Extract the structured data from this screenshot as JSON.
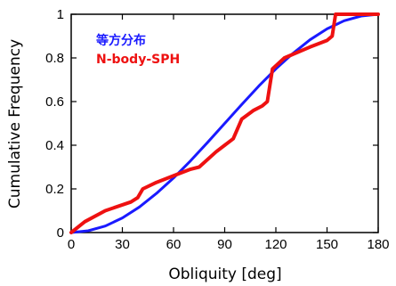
{
  "chart_data": {
    "type": "line",
    "title": "",
    "xlabel": "Obliquity [deg]",
    "ylabel": "Cumulative Frequency",
    "xlim": [
      0,
      180
    ],
    "ylim": [
      0,
      1
    ],
    "x_ticks": [
      "0",
      "30",
      "60",
      "90",
      "120",
      "150",
      "180"
    ],
    "y_ticks": [
      "0",
      "0.2",
      "0.4",
      "0.6",
      "0.8",
      "1"
    ],
    "grid": false,
    "legend_position": "top-left",
    "series": [
      {
        "name": "等方分布",
        "color": "#1a1aff",
        "x": [
          0,
          10,
          20,
          30,
          40,
          50,
          60,
          70,
          80,
          90,
          100,
          110,
          120,
          130,
          140,
          150,
          160,
          170,
          180
        ],
        "y": [
          0,
          0.008,
          0.03,
          0.067,
          0.117,
          0.179,
          0.25,
          0.329,
          0.413,
          0.5,
          0.587,
          0.671,
          0.75,
          0.821,
          0.883,
          0.933,
          0.97,
          0.992,
          1
        ]
      },
      {
        "name": "N-body-SPH",
        "color": "#ee1111",
        "x": [
          0,
          8,
          20,
          35,
          39,
          42,
          50,
          60,
          70,
          75,
          85,
          90,
          95,
          100,
          107,
          112,
          115,
          118,
          125,
          140,
          150,
          153,
          155,
          160,
          170,
          180
        ],
        "y": [
          0,
          0.05,
          0.1,
          0.14,
          0.16,
          0.2,
          0.23,
          0.26,
          0.29,
          0.3,
          0.37,
          0.4,
          0.43,
          0.52,
          0.56,
          0.58,
          0.6,
          0.75,
          0.8,
          0.85,
          0.88,
          0.9,
          1,
          1,
          1,
          1
        ]
      }
    ]
  }
}
